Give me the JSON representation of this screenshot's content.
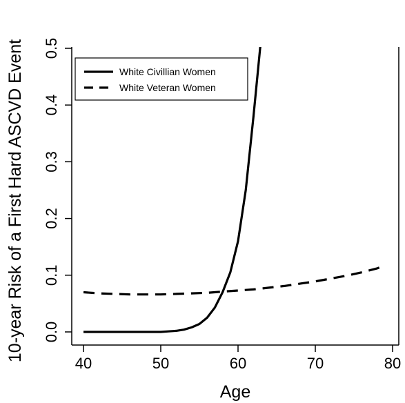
{
  "chart_data": {
    "type": "line",
    "title": "",
    "xlabel": "Age",
    "ylabel": "10-year Risk of a First Hard ASCVD Event",
    "xlim": [
      40,
      80
    ],
    "ylim": [
      0.0,
      0.5
    ],
    "xticks": [
      "40",
      "50",
      "60",
      "70",
      "80"
    ],
    "yticks": [
      "0.0",
      "0.1",
      "0.2",
      "0.3",
      "0.4",
      "0.5"
    ],
    "grid": false,
    "legend_position": "top-left",
    "series": [
      {
        "name": "White Civillian Women",
        "style": "solid",
        "color": "#000000",
        "x": [
          40,
          45,
          50,
          51,
          52,
          53,
          54,
          55,
          56,
          57,
          58,
          59,
          60,
          61,
          62,
          63
        ],
        "y": [
          0.0,
          0.0,
          0.0,
          0.001,
          0.002,
          0.004,
          0.008,
          0.014,
          0.025,
          0.043,
          0.07,
          0.105,
          0.16,
          0.25,
          0.38,
          0.52
        ]
      },
      {
        "name": "White Veteran Women",
        "style": "dashed",
        "color": "#000000",
        "x": [
          40,
          42,
          44,
          46,
          48,
          50,
          52,
          54,
          56,
          58,
          60,
          62,
          64,
          66,
          68,
          70,
          72,
          74,
          76,
          78,
          79
        ],
        "y": [
          0.07,
          0.068,
          0.067,
          0.066,
          0.066,
          0.066,
          0.067,
          0.068,
          0.069,
          0.071,
          0.073,
          0.075,
          0.078,
          0.081,
          0.085,
          0.089,
          0.094,
          0.099,
          0.105,
          0.112,
          0.117
        ]
      }
    ]
  }
}
